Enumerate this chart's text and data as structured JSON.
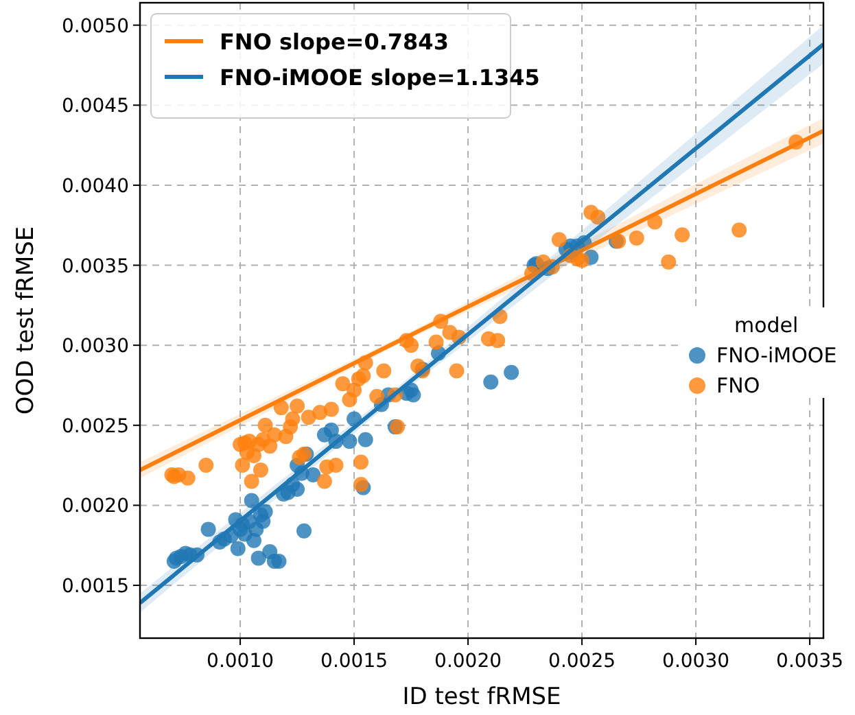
{
  "chart_data": {
    "type": "scatter",
    "xlabel": "ID test fRMSE",
    "ylabel": "OOD test fRMSE",
    "legend_title": "model",
    "legend": "top left",
    "grid": true,
    "marker": "circle",
    "xlim": [
      0.00056,
      0.00356
    ],
    "ylim": [
      0.00117,
      0.00514
    ],
    "xticks": [
      {
        "value": 0.001,
        "label": "0.0010"
      },
      {
        "value": 0.0015,
        "label": "0.0015"
      },
      {
        "value": 0.002,
        "label": "0.0020"
      },
      {
        "value": 0.0025,
        "label": "0.0025"
      },
      {
        "value": 0.003,
        "label": "0.0030"
      },
      {
        "value": 0.0035,
        "label": "0.0035"
      }
    ],
    "yticks": [
      {
        "value": 0.0015,
        "label": "0.0015"
      },
      {
        "value": 0.002,
        "label": "0.0020"
      },
      {
        "value": 0.0025,
        "label": "0.0025"
      },
      {
        "value": 0.003,
        "label": "0.0030"
      },
      {
        "value": 0.0035,
        "label": "0.0035"
      },
      {
        "value": 0.004,
        "label": "0.0040"
      },
      {
        "value": 0.0045,
        "label": "0.0045"
      },
      {
        "value": 0.005,
        "label": "0.0050"
      }
    ],
    "series": [
      {
        "name": "FNO-iMOOE",
        "color": "#1f77b4",
        "x": [
          0.00071,
          0.00072,
          0.00074,
          0.00076,
          0.00078,
          0.00081,
          0.00086,
          0.00091,
          0.00093,
          0.00096,
          0.00098,
          0.00099,
          0.001,
          0.00101,
          0.00102,
          0.00104,
          0.00105,
          0.00106,
          0.00107,
          0.00108,
          0.00109,
          0.0011,
          0.00111,
          0.00113,
          0.00115,
          0.00117,
          0.00119,
          0.00121,
          0.00123,
          0.00125,
          0.00125,
          0.00127,
          0.00128,
          0.00129,
          0.00132,
          0.00137,
          0.0014,
          0.00142,
          0.00148,
          0.0015,
          0.00154,
          0.00155,
          0.00162,
          0.00165,
          0.00168,
          0.00173,
          0.00175,
          0.00176,
          0.0018,
          0.00187,
          0.0021,
          0.00219,
          0.00229,
          0.0023,
          0.00235,
          0.00243,
          0.00245,
          0.00248,
          0.00251,
          0.00254,
          0.00265
        ],
        "values": [
          0.00165,
          0.00167,
          0.00168,
          0.0017,
          0.00169,
          0.00169,
          0.00185,
          0.00177,
          0.00179,
          0.00181,
          0.00191,
          0.00173,
          0.00185,
          0.00188,
          0.00182,
          0.0019,
          0.00203,
          0.00178,
          0.00185,
          0.00167,
          0.00194,
          0.0019,
          0.00196,
          0.00171,
          0.00165,
          0.00165,
          0.00207,
          0.00208,
          0.00213,
          0.0021,
          0.00225,
          0.0022,
          0.00184,
          0.00232,
          0.00219,
          0.00244,
          0.00247,
          0.0024,
          0.0024,
          0.00254,
          0.00211,
          0.00241,
          0.00263,
          0.00269,
          0.00249,
          0.0027,
          0.00272,
          0.00269,
          0.00285,
          0.00295,
          0.00277,
          0.00283,
          0.0035,
          0.00351,
          0.00348,
          0.0036,
          0.00362,
          0.00362,
          0.00364,
          0.00355,
          0.00365
        ]
      },
      {
        "name": "FNO",
        "color": "#ff7f0e",
        "x": [
          0.0007,
          0.00071,
          0.00073,
          0.00077,
          0.00085,
          0.001,
          0.00101,
          0.00102,
          0.00103,
          0.00104,
          0.00105,
          0.00106,
          0.00108,
          0.00109,
          0.0011,
          0.00111,
          0.00113,
          0.00115,
          0.00118,
          0.0012,
          0.00122,
          0.00123,
          0.00125,
          0.00126,
          0.00128,
          0.0013,
          0.00135,
          0.00137,
          0.00138,
          0.0014,
          0.00142,
          0.00145,
          0.00148,
          0.0015,
          0.00152,
          0.00153,
          0.00154,
          0.00155,
          0.00153,
          0.0016,
          0.00163,
          0.00168,
          0.00169,
          0.00173,
          0.00175,
          0.00178,
          0.0018,
          0.00186,
          0.00188,
          0.00192,
          0.00195,
          0.00196,
          0.00209,
          0.00213,
          0.00214,
          0.00228,
          0.00233,
          0.00237,
          0.0024,
          0.00245,
          0.00248,
          0.0025,
          0.00254,
          0.00257,
          0.00266,
          0.00274,
          0.00282,
          0.00288,
          0.00294,
          0.00319,
          0.00344
        ],
        "values": [
          0.00219,
          0.00218,
          0.00219,
          0.00217,
          0.00225,
          0.00238,
          0.00225,
          0.00239,
          0.00233,
          0.0024,
          0.00215,
          0.00231,
          0.00238,
          0.00222,
          0.00241,
          0.0025,
          0.00237,
          0.00244,
          0.00261,
          0.00243,
          0.00249,
          0.00254,
          0.00262,
          0.0023,
          0.00232,
          0.00255,
          0.00258,
          0.00215,
          0.00224,
          0.0026,
          0.00225,
          0.00276,
          0.00266,
          0.00272,
          0.00279,
          0.00227,
          0.00281,
          0.00289,
          0.00213,
          0.00268,
          0.00284,
          0.00269,
          0.00249,
          0.00303,
          0.003,
          0.00287,
          0.00284,
          0.00302,
          0.00315,
          0.00308,
          0.00284,
          0.00305,
          0.00304,
          0.00303,
          0.00318,
          0.00345,
          0.00352,
          0.00349,
          0.00366,
          0.00356,
          0.00354,
          0.00353,
          0.00383,
          0.0038,
          0.00365,
          0.00367,
          0.00377,
          0.00352,
          0.00369,
          0.00372,
          0.00427
        ]
      },
      {
        "type": "line",
        "marker": "none",
        "name": "FNO slope=0.7843",
        "color": "#ff7f0e",
        "x": [
          0.00056,
          0.0017,
          0.00356
        ],
        "values": [
          0.00222,
          0.00303,
          0.00434
        ],
        "lower": [
          0.00217,
          0.00301,
          0.00426
        ],
        "upper": [
          0.00227,
          0.00305,
          0.00442
        ]
      },
      {
        "type": "line",
        "marker": "none",
        "name": "FNO-iMOOE slope=1.1345",
        "color": "#1f77b4",
        "x": [
          0.00056,
          0.0017,
          0.00356
        ],
        "values": [
          0.00139,
          0.00272,
          0.00488
        ],
        "lower": [
          0.00133,
          0.00269,
          0.00476
        ],
        "upper": [
          0.00145,
          0.00275,
          0.005
        ]
      }
    ]
  }
}
